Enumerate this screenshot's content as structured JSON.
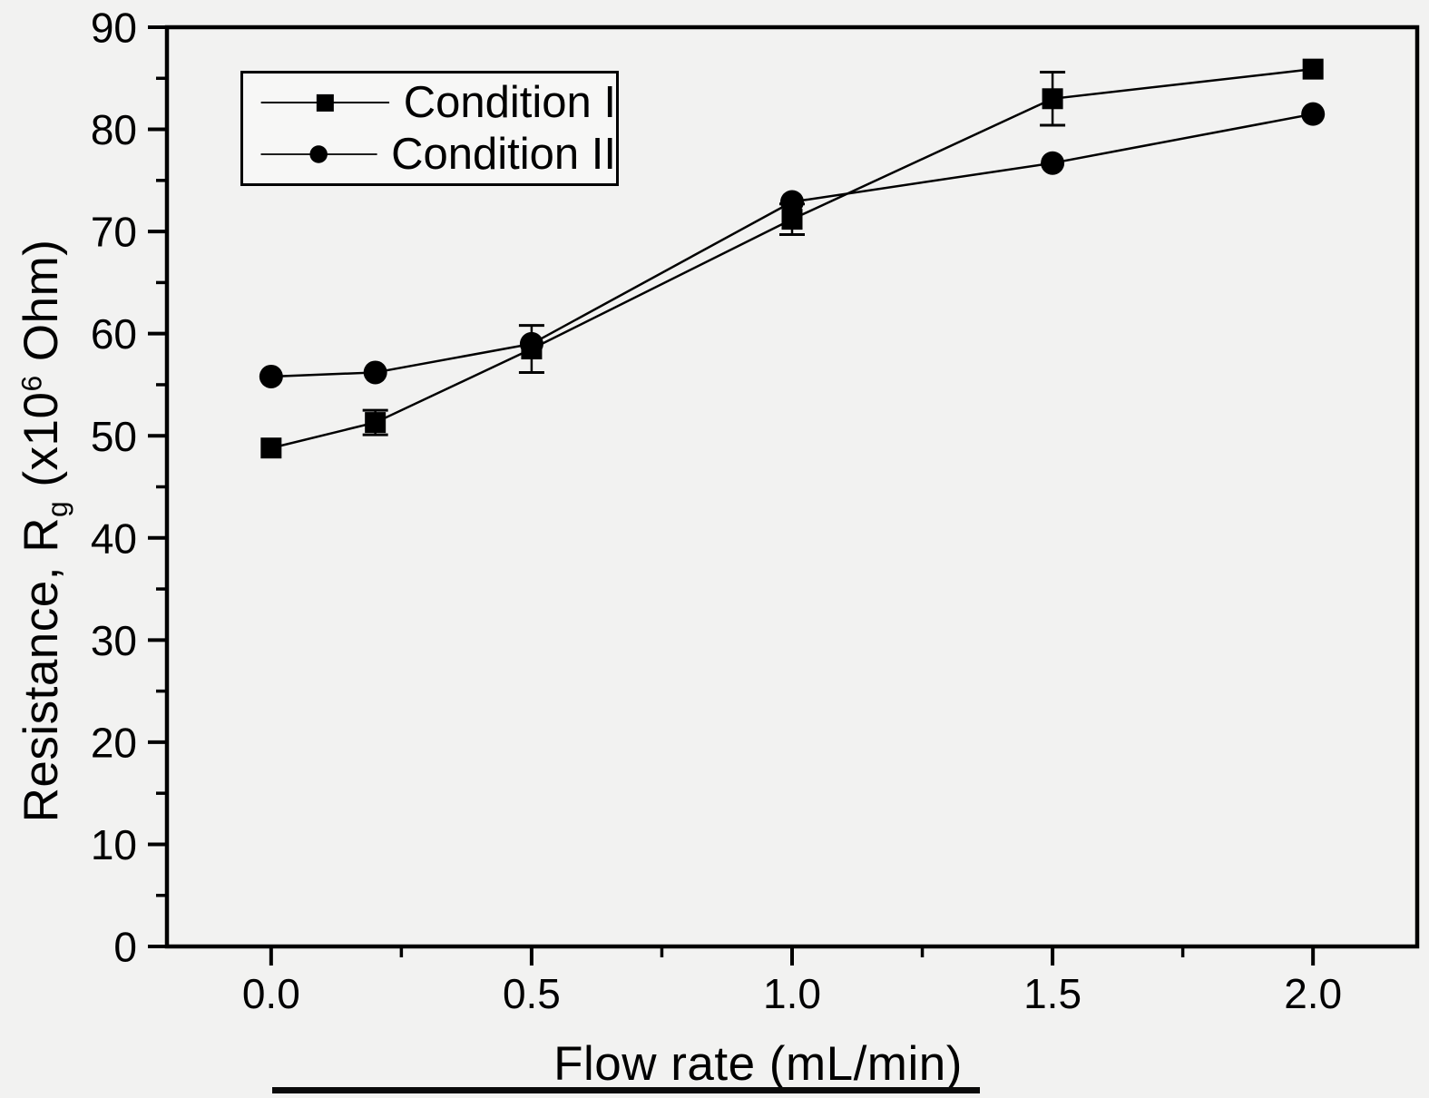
{
  "figure": {
    "background_color": "#f2f2f1",
    "foreground_color": "#000000",
    "bottom_cropped_bar": "partially-visible black bar at bottom edge"
  },
  "chart_data": {
    "type": "line",
    "title": "",
    "xlabel": "Flow rate (mL/min)",
    "ylabel": "Resistance, Rg (x10^6 Ohm)",
    "ylabel_parts": [
      {
        "text": "Resistance, R",
        "style": "normal"
      },
      {
        "text": "g",
        "style": "sub"
      },
      {
        "text": " (x10",
        "style": "normal"
      },
      {
        "text": "6",
        "style": "sup"
      },
      {
        "text": " Ohm)",
        "style": "normal"
      }
    ],
    "xlim": [
      -0.2,
      2.2
    ],
    "ylim": [
      0,
      90
    ],
    "grid": false,
    "x_major_ticks": [
      0.0,
      0.5,
      1.0,
      1.5,
      2.0
    ],
    "x_tick_labels": [
      "0.0",
      "0.5",
      "1.0",
      "1.5",
      "2.0"
    ],
    "x_minor_ticks": [
      0.25,
      0.75,
      1.25,
      1.75
    ],
    "y_major_ticks": [
      0,
      10,
      20,
      30,
      40,
      50,
      60,
      70,
      80,
      90
    ],
    "y_tick_labels": [
      "0",
      "10",
      "20",
      "30",
      "40",
      "50",
      "60",
      "70",
      "80",
      "90"
    ],
    "y_minor_ticks": [
      5,
      15,
      25,
      35,
      45,
      55,
      65,
      75,
      85
    ],
    "legend": {
      "position": "top-left",
      "border": true
    },
    "x": [
      0.0,
      0.2,
      0.5,
      1.0,
      1.5,
      2.0
    ],
    "series": [
      {
        "name": "Condition I",
        "marker": "square",
        "color": "#000000",
        "values": [
          48.8,
          51.3,
          58.5,
          71.2,
          83.0,
          85.9
        ],
        "yerr": [
          0,
          1.2,
          2.3,
          1.5,
          2.6,
          0
        ]
      },
      {
        "name": "Condition II",
        "marker": "circle",
        "color": "#000000",
        "values": [
          55.8,
          56.2,
          59.0,
          72.9,
          76.7,
          81.5
        ],
        "yerr": [
          0,
          0,
          0,
          0,
          0,
          0
        ]
      }
    ]
  }
}
